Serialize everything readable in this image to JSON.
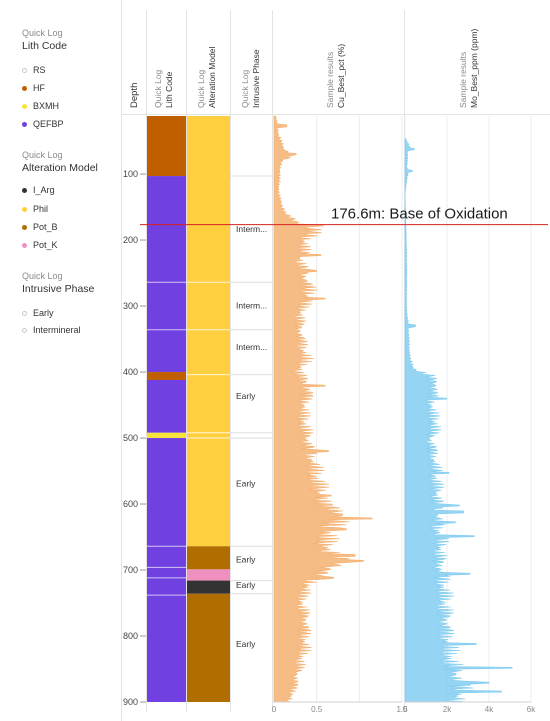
{
  "legend": {
    "lith": {
      "subtitle": "Quick Log",
      "title": "Lith Code",
      "items": [
        {
          "label": "RS",
          "color": "#ffffff"
        },
        {
          "label": "HF",
          "color": "#c05f00"
        },
        {
          "label": "BXMH",
          "color": "#f7e339"
        },
        {
          "label": "QEFBP",
          "color": "#7140e0"
        }
      ]
    },
    "alteration": {
      "subtitle": "Quick Log",
      "title": "Alteration Model",
      "items": [
        {
          "label": "I_Arg",
          "color": "#333333"
        },
        {
          "label": "Phil",
          "color": "#ffcf40"
        },
        {
          "label": "Pot_B",
          "color": "#b06e00"
        },
        {
          "label": "Pot_K",
          "color": "#f090c0"
        }
      ]
    },
    "intrusive": {
      "subtitle": "Quick Log",
      "title": "Intrusive Phase",
      "items": [
        {
          "label": "Early",
          "color": "#ffffff"
        },
        {
          "label": "Intermineral",
          "color": "#ffffff"
        }
      ]
    }
  },
  "columns": {
    "depth": "Depth",
    "lith": {
      "line1": "Quick Log",
      "line2": "Lith Code"
    },
    "alteration": {
      "line1": "Quick Log",
      "line2": "Alteration Model"
    },
    "intrusive": {
      "line1": "Quick Log",
      "line2": "Intrusive Phase"
    },
    "cu": {
      "line1": "Sample results",
      "line2": "Cu_Best_pct (%)"
    },
    "mo": {
      "line1": "Sample results",
      "line2": "Mo_Best_ppm (ppm)"
    }
  },
  "annotation": {
    "text": "176.6m: Base of Oxidation",
    "depth": 176.6,
    "color": "#d62020"
  },
  "chart_data": {
    "type": "well log",
    "depth_range": [
      12,
      900
    ],
    "depth_ticks": [
      100,
      200,
      300,
      400,
      500,
      600,
      700,
      800,
      900
    ],
    "lith_intervals": [
      {
        "from": 12,
        "to": 103,
        "code": "HF",
        "color": "#c05f00"
      },
      {
        "from": 103,
        "to": 400,
        "code": "QEFBP",
        "color": "#7140e0"
      },
      {
        "from": 400,
        "to": 412,
        "code": "HF",
        "color": "#c05f00"
      },
      {
        "from": 412,
        "to": 492,
        "code": "QEFBP",
        "color": "#7140e0"
      },
      {
        "from": 492,
        "to": 500,
        "code": "BXMH",
        "color": "#f7e339"
      },
      {
        "from": 500,
        "to": 900,
        "code": "QEFBP",
        "color": "#7140e0"
      }
    ],
    "lith_boundaries": [
      264,
      336,
      664,
      696,
      712,
      738
    ],
    "alteration_intervals": [
      {
        "from": 12,
        "to": 664,
        "code": "Phil",
        "color": "#ffcf40"
      },
      {
        "from": 664,
        "to": 699,
        "code": "Pot_B",
        "color": "#b06e00"
      },
      {
        "from": 699,
        "to": 716,
        "code": "Pot_K",
        "color": "#f090c0"
      },
      {
        "from": 716,
        "to": 736,
        "code": "I_Arg",
        "color": "#333333"
      },
      {
        "from": 736,
        "to": 900,
        "code": "Pot_B",
        "color": "#b06e00"
      }
    ],
    "alteration_boundaries": [
      264,
      336,
      404,
      492,
      500
    ],
    "intrusive_labels": [
      {
        "label": "Interm...",
        "depth": 183
      },
      {
        "label": "Interm...",
        "depth": 299
      },
      {
        "label": "Interm...",
        "depth": 362
      },
      {
        "label": "Early",
        "depth": 436
      },
      {
        "label": "Early",
        "depth": 569
      },
      {
        "label": "Early",
        "depth": 684
      },
      {
        "label": "Early",
        "depth": 723
      },
      {
        "label": "Early",
        "depth": 812
      }
    ],
    "intrusive_boundaries": [
      103,
      264,
      336,
      404,
      492,
      500,
      664,
      716,
      736
    ],
    "cu": {
      "name": "Cu_Best_pct (%)",
      "unit": "%",
      "xlim": [
        0,
        1.5
      ],
      "xticks": [
        0,
        0.5,
        1,
        1.5
      ],
      "xtick_labels": [
        "0",
        "0.5",
        "",
        "1.5"
      ],
      "color": "#f5b070",
      "profile": [
        [
          12,
          0.02
        ],
        [
          40,
          0.05
        ],
        [
          60,
          0.1
        ],
        [
          72,
          0.2
        ],
        [
          80,
          0.08
        ],
        [
          100,
          0.06
        ],
        [
          130,
          0.05
        ],
        [
          160,
          0.12
        ],
        [
          176,
          0.3
        ],
        [
          185,
          0.45
        ],
        [
          200,
          0.35
        ],
        [
          230,
          0.3
        ],
        [
          260,
          0.35
        ],
        [
          280,
          0.4
        ],
        [
          300,
          0.32
        ],
        [
          330,
          0.28
        ],
        [
          350,
          0.3
        ],
        [
          380,
          0.35
        ],
        [
          400,
          0.28
        ],
        [
          430,
          0.38
        ],
        [
          460,
          0.32
        ],
        [
          490,
          0.35
        ],
        [
          520,
          0.4
        ],
        [
          550,
          0.45
        ],
        [
          580,
          0.5
        ],
        [
          600,
          0.55
        ],
        [
          615,
          0.78
        ],
        [
          630,
          0.65
        ],
        [
          660,
          0.55
        ],
        [
          690,
          0.75
        ],
        [
          710,
          0.45
        ],
        [
          740,
          0.3
        ],
        [
          780,
          0.35
        ],
        [
          820,
          0.33
        ],
        [
          860,
          0.25
        ],
        [
          890,
          0.2
        ],
        [
          900,
          0.15
        ]
      ],
      "spikes": [
        [
          27,
          0.15
        ],
        [
          70,
          0.26
        ],
        [
          178,
          0.58
        ],
        [
          223,
          0.55
        ],
        [
          247,
          0.5
        ],
        [
          289,
          0.6
        ],
        [
          421,
          0.6
        ],
        [
          520,
          0.64
        ],
        [
          587,
          0.67
        ],
        [
          622,
          1.15
        ],
        [
          638,
          0.85
        ],
        [
          678,
          0.95
        ],
        [
          686,
          1.05
        ],
        [
          712,
          0.7
        ]
      ]
    },
    "mo": {
      "name": "Mo_Best_ppm (ppm)",
      "unit": "ppm",
      "xlim": [
        0,
        6000
      ],
      "xticks": [
        0,
        2000,
        4000,
        6000
      ],
      "xtick_labels": [
        "0",
        "2k",
        "4k",
        "6k"
      ],
      "color": "#82cdf0",
      "profile": [
        [
          45,
          0
        ],
        [
          55,
          150
        ],
        [
          62,
          250
        ],
        [
          66,
          120
        ],
        [
          90,
          80
        ],
        [
          95,
          180
        ],
        [
          103,
          100
        ],
        [
          130,
          0
        ],
        [
          200,
          60
        ],
        [
          250,
          80
        ],
        [
          300,
          60
        ],
        [
          330,
          150
        ],
        [
          360,
          180
        ],
        [
          380,
          220
        ],
        [
          395,
          400
        ],
        [
          405,
          1100
        ],
        [
          420,
          1400
        ],
        [
          440,
          1200
        ],
        [
          460,
          1200
        ],
        [
          480,
          1400
        ],
        [
          500,
          1150
        ],
        [
          530,
          1300
        ],
        [
          570,
          1400
        ],
        [
          600,
          1500
        ],
        [
          630,
          1450
        ],
        [
          660,
          1600
        ],
        [
          690,
          1550
        ],
        [
          720,
          1700
        ],
        [
          760,
          1800
        ],
        [
          800,
          1850
        ],
        [
          830,
          2000
        ],
        [
          850,
          2200
        ],
        [
          880,
          2600
        ],
        [
          900,
          2300
        ]
      ],
      "spikes": [
        [
          62,
          450
        ],
        [
          95,
          350
        ],
        [
          330,
          500
        ],
        [
          440,
          2000
        ],
        [
          553,
          2100
        ],
        [
          602,
          2600
        ],
        [
          612,
          2800
        ],
        [
          628,
          2400
        ],
        [
          649,
          3300
        ],
        [
          706,
          3100
        ],
        [
          812,
          3400
        ],
        [
          848,
          5100
        ],
        [
          871,
          4000
        ],
        [
          884,
          4600
        ]
      ]
    }
  }
}
